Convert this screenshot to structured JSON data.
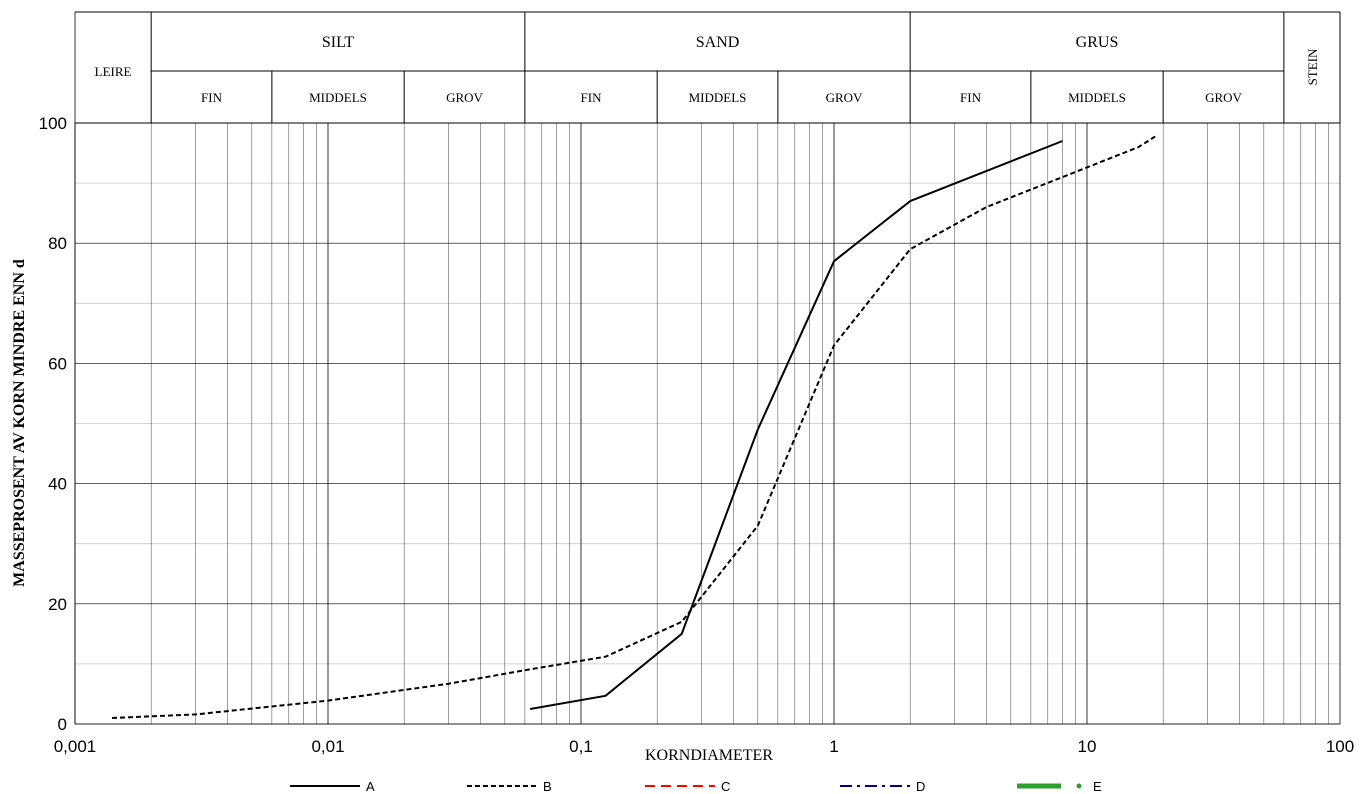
{
  "chart_data": {
    "type": "line",
    "xscale": "log",
    "xlim": [
      0.001,
      100
    ],
    "ylim": [
      0,
      100
    ],
    "xlabel": "KORNDIAMETER",
    "ylabel": "MASSEPROSENT AV KORN MINDRE ENN d",
    "x_tick_labels": [
      "0,001",
      "0,01",
      "0,1",
      "1",
      "10",
      "100"
    ],
    "y_tick_labels": [
      "0",
      "20",
      "40",
      "60",
      "80",
      "100"
    ],
    "header": {
      "leire": "LEIRE",
      "stein": "STEIN",
      "groups": [
        {
          "name": "SILT",
          "subs": [
            "FIN",
            "MIDDELS",
            "GROV"
          ]
        },
        {
          "name": "SAND",
          "subs": [
            "FIN",
            "MIDDELS",
            "GROV"
          ]
        },
        {
          "name": "GRUS",
          "subs": [
            "FIN",
            "MIDDELS",
            "GROV"
          ]
        }
      ]
    },
    "legend_position": "bottom",
    "series": [
      {
        "name": "A",
        "color": "#000000",
        "style": "solid",
        "x": [
          0.063,
          0.125,
          0.25,
          0.5,
          1,
          2,
          8
        ],
        "y": [
          2.5,
          4.7,
          15,
          49,
          77,
          87,
          97
        ]
      },
      {
        "name": "B",
        "color": "#000000",
        "style": "dashed",
        "x": [
          0.0014,
          0.003,
          0.01,
          0.03,
          0.063,
          0.125,
          0.25,
          0.5,
          1,
          2,
          4,
          8,
          16,
          19
        ],
        "y": [
          1,
          1.6,
          3.9,
          6.7,
          9.1,
          11.2,
          17,
          33,
          63,
          79,
          86,
          91,
          96,
          98
        ]
      },
      {
        "name": "C",
        "color": "#ff0000",
        "style": "long-dash",
        "x": [],
        "y": []
      },
      {
        "name": "D",
        "color": "#000080",
        "style": "dash-dot",
        "x": [],
        "y": []
      },
      {
        "name": "E",
        "color": "#2ca02c",
        "style": "thick-dot",
        "x": [],
        "y": []
      }
    ]
  }
}
